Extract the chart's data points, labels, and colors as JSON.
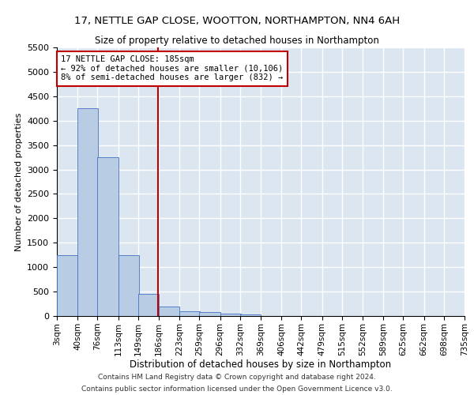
{
  "title": "17, NETTLE GAP CLOSE, WOOTTON, NORTHAMPTON, NN4 6AH",
  "subtitle": "Size of property relative to detached houses in Northampton",
  "xlabel": "Distribution of detached houses by size in Northampton",
  "ylabel": "Number of detached properties",
  "footer_line1": "Contains HM Land Registry data © Crown copyright and database right 2024.",
  "footer_line2": "Contains public sector information licensed under the Open Government Licence v3.0.",
  "bin_edges": [
    3,
    40,
    76,
    113,
    149,
    186,
    223,
    259,
    296,
    332,
    369,
    406,
    442,
    479,
    515,
    552,
    589,
    625,
    662,
    698,
    735
  ],
  "bar_heights": [
    1250,
    4250,
    3250,
    1250,
    450,
    200,
    100,
    75,
    50,
    30,
    0,
    0,
    0,
    0,
    0,
    0,
    0,
    0,
    0,
    0
  ],
  "bar_color": "#b8cce4",
  "bar_edge_color": "#4472c4",
  "bg_color": "#dce6f1",
  "grid_color": "#ffffff",
  "vline_x": 185,
  "vline_color": "#c00000",
  "annotation_line1": "17 NETTLE GAP CLOSE: 185sqm",
  "annotation_line2": "← 92% of detached houses are smaller (10,106)",
  "annotation_line3": "8% of semi-detached houses are larger (832) →",
  "annotation_box_color": "#c00000",
  "ylim": [
    0,
    5500
  ],
  "yticks": [
    0,
    500,
    1000,
    1500,
    2000,
    2500,
    3000,
    3500,
    4000,
    4500,
    5000,
    5500
  ],
  "tick_labels": [
    "3sqm",
    "40sqm",
    "76sqm",
    "113sqm",
    "149sqm",
    "186sqm",
    "223sqm",
    "259sqm",
    "296sqm",
    "332sqm",
    "369sqm",
    "406sqm",
    "442sqm",
    "479sqm",
    "515sqm",
    "552sqm",
    "589sqm",
    "625sqm",
    "662sqm",
    "698sqm",
    "735sqm"
  ]
}
